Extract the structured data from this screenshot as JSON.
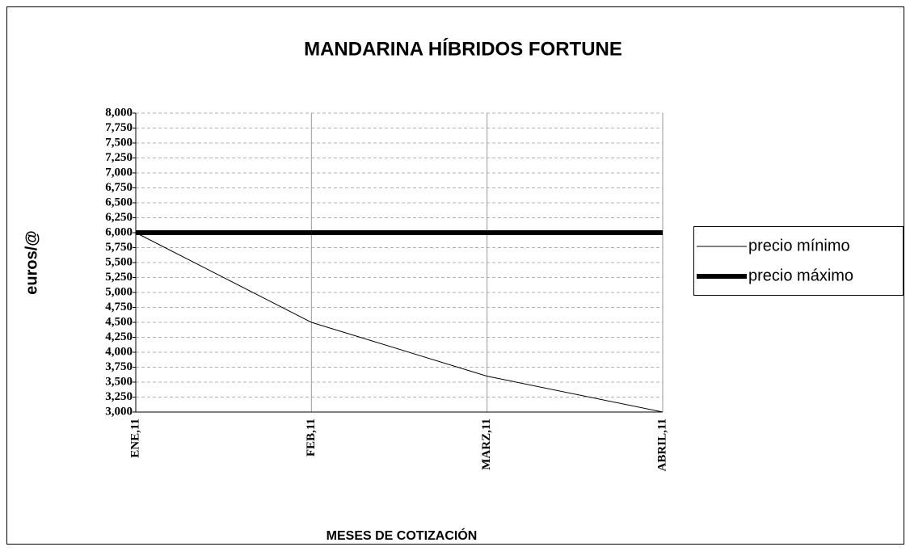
{
  "chart_data": {
    "type": "line",
    "title": "MANDARINA HÍBRIDOS FORTUNE",
    "x_label": "MESES DE COTIZACIÓN",
    "y_label": "euros/@",
    "categories": [
      "ENE,11",
      "FEB,11",
      "MARZ,11",
      "ABRIL,11"
    ],
    "series": [
      {
        "name": "precio mínimo",
        "color": "#000000",
        "line_width": 1,
        "values": [
          6.0,
          4.5,
          3.6,
          3.0
        ]
      },
      {
        "name": "precio máximo",
        "color": "#000000",
        "line_width": 6,
        "values": [
          6.0,
          6.0,
          6.0,
          6.0
        ]
      }
    ],
    "ylim": [
      3,
      8
    ],
    "yticks": [
      {
        "value": 3,
        "label": "3,000"
      },
      {
        "value": 3.25,
        "label": "3,250"
      },
      {
        "value": 3.5,
        "label": "3,500"
      },
      {
        "value": 3.75,
        "label": "3,750"
      },
      {
        "value": 4,
        "label": "4,000"
      },
      {
        "value": 4.25,
        "label": "4,250"
      },
      {
        "value": 4.5,
        "label": "4,500"
      },
      {
        "value": 4.75,
        "label": "4,750"
      },
      {
        "value": 5,
        "label": "5,000"
      },
      {
        "value": 5.25,
        "label": "5,250"
      },
      {
        "value": 5.5,
        "label": "5,500"
      },
      {
        "value": 5.75,
        "label": "5,750"
      },
      {
        "value": 6,
        "label": "6,000"
      },
      {
        "value": 6.25,
        "label": "6,250"
      },
      {
        "value": 6.5,
        "label": "6,500"
      },
      {
        "value": 6.75,
        "label": "6,750"
      },
      {
        "value": 7,
        "label": "7,000"
      },
      {
        "value": 7.25,
        "label": "7,250"
      },
      {
        "value": 7.5,
        "label": "7,500"
      },
      {
        "value": 7.75,
        "label": "7,750"
      },
      {
        "value": 8,
        "label": "8,000"
      }
    ],
    "grid": true,
    "legend": "right"
  }
}
